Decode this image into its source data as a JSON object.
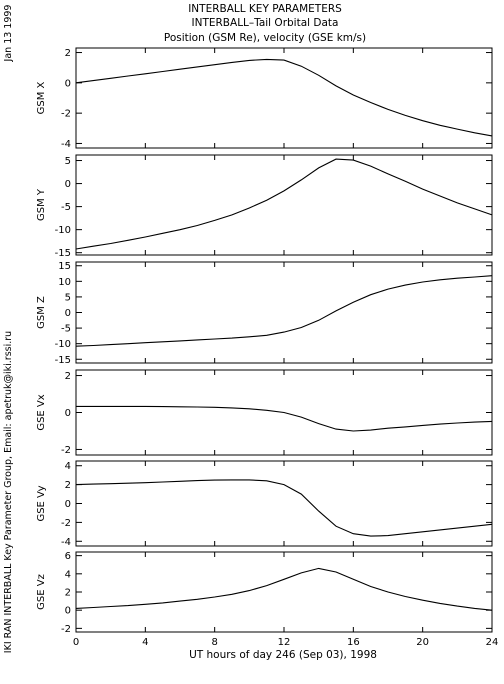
{
  "header": {
    "title_lines": [
      "INTERBALL KEY PARAMETERS",
      "INTERBALL–Tail Orbital Data",
      "Position (GSM Re), velocity (GSE km/s)"
    ]
  },
  "side_labels": {
    "date": "Jan 13 1999",
    "credit": "IKI RAN INTERBALL Key Parameter Group, Email: apetruk@iki.rssi.ru"
  },
  "chart_data": {
    "type": "line",
    "xlabel": "UT hours of day 246 (Sep 03), 1998",
    "xlim": [
      0,
      24
    ],
    "xticks": [
      0,
      4,
      8,
      12,
      16,
      20,
      24
    ],
    "panels": [
      {
        "ylabel": "GSM X",
        "ylim": [
          -4.3,
          2.3
        ],
        "yticks": [
          -4,
          -2,
          0,
          2
        ],
        "x": [
          0,
          1,
          2,
          3,
          4,
          5,
          6,
          7,
          8,
          9,
          10,
          11,
          12,
          13,
          14,
          15,
          16,
          17,
          18,
          19,
          20,
          21,
          22,
          23,
          24
        ],
        "values": [
          0.0,
          0.15,
          0.3,
          0.45,
          0.6,
          0.75,
          0.9,
          1.05,
          1.2,
          1.35,
          1.48,
          1.55,
          1.5,
          1.1,
          0.5,
          -0.2,
          -0.8,
          -1.3,
          -1.75,
          -2.15,
          -2.5,
          -2.8,
          -3.05,
          -3.3,
          -3.5
        ]
      },
      {
        "ylabel": "GSM Y",
        "ylim": [
          -15.5,
          6.2
        ],
        "yticks": [
          -15,
          -10,
          -5,
          0,
          5
        ],
        "x": [
          0,
          1,
          2,
          3,
          4,
          5,
          6,
          7,
          8,
          9,
          10,
          11,
          12,
          13,
          14,
          15,
          16,
          17,
          18,
          19,
          20,
          21,
          22,
          23,
          24
        ],
        "values": [
          -14.2,
          -13.6,
          -13.0,
          -12.3,
          -11.6,
          -10.8,
          -10.0,
          -9.1,
          -8.0,
          -6.8,
          -5.3,
          -3.6,
          -1.6,
          0.8,
          3.4,
          5.3,
          5.1,
          3.8,
          2.1,
          0.5,
          -1.2,
          -2.7,
          -4.2,
          -5.5,
          -6.8
        ]
      },
      {
        "ylabel": "GSM Z",
        "ylim": [
          -16.2,
          16.2
        ],
        "yticks": [
          -15,
          -10,
          -5,
          0,
          5,
          10,
          15
        ],
        "x": [
          0,
          1,
          2,
          3,
          4,
          5,
          6,
          7,
          8,
          9,
          10,
          11,
          12,
          13,
          14,
          15,
          16,
          17,
          18,
          19,
          20,
          21,
          22,
          23,
          24
        ],
        "values": [
          -10.8,
          -10.6,
          -10.3,
          -10.0,
          -9.7,
          -9.4,
          -9.1,
          -8.8,
          -8.5,
          -8.2,
          -7.8,
          -7.3,
          -6.3,
          -4.8,
          -2.5,
          0.5,
          3.3,
          5.7,
          7.5,
          8.8,
          9.8,
          10.5,
          11.0,
          11.4,
          11.8
        ]
      },
      {
        "ylabel": "GSE Vx",
        "ylim": [
          -2.3,
          2.3
        ],
        "yticks": [
          -2,
          0,
          2
        ],
        "x": [
          0,
          1,
          2,
          3,
          4,
          5,
          6,
          7,
          8,
          9,
          10,
          11,
          12,
          13,
          14,
          15,
          16,
          17,
          18,
          19,
          20,
          21,
          22,
          23,
          24
        ],
        "values": [
          0.33,
          0.33,
          0.33,
          0.33,
          0.33,
          0.32,
          0.31,
          0.3,
          0.28,
          0.25,
          0.2,
          0.12,
          0.0,
          -0.25,
          -0.6,
          -0.9,
          -1.0,
          -0.95,
          -0.85,
          -0.78,
          -0.7,
          -0.63,
          -0.57,
          -0.52,
          -0.48
        ]
      },
      {
        "ylabel": "GSE Vy",
        "ylim": [
          -4.5,
          4.5
        ],
        "yticks": [
          -4,
          -2,
          0,
          2,
          4
        ],
        "x": [
          0,
          1,
          2,
          3,
          4,
          5,
          6,
          7,
          8,
          9,
          10,
          11,
          12,
          13,
          14,
          15,
          16,
          17,
          18,
          19,
          20,
          21,
          22,
          23,
          24
        ],
        "values": [
          2.0,
          2.05,
          2.1,
          2.15,
          2.2,
          2.28,
          2.35,
          2.42,
          2.48,
          2.5,
          2.5,
          2.4,
          2.0,
          1.0,
          -0.8,
          -2.4,
          -3.2,
          -3.45,
          -3.4,
          -3.2,
          -3.0,
          -2.8,
          -2.6,
          -2.4,
          -2.2
        ]
      },
      {
        "ylabel": "GSE Vz",
        "ylim": [
          -2.4,
          6.4
        ],
        "yticks": [
          -2,
          0,
          2,
          4,
          6
        ],
        "x": [
          0,
          1,
          2,
          3,
          4,
          5,
          6,
          7,
          8,
          9,
          10,
          11,
          12,
          13,
          14,
          15,
          16,
          17,
          18,
          19,
          20,
          21,
          22,
          23,
          24
        ],
        "values": [
          0.2,
          0.3,
          0.4,
          0.5,
          0.65,
          0.8,
          1.0,
          1.2,
          1.45,
          1.75,
          2.15,
          2.7,
          3.4,
          4.1,
          4.6,
          4.2,
          3.4,
          2.6,
          2.0,
          1.5,
          1.1,
          0.75,
          0.45,
          0.2,
          0.0
        ]
      }
    ]
  }
}
